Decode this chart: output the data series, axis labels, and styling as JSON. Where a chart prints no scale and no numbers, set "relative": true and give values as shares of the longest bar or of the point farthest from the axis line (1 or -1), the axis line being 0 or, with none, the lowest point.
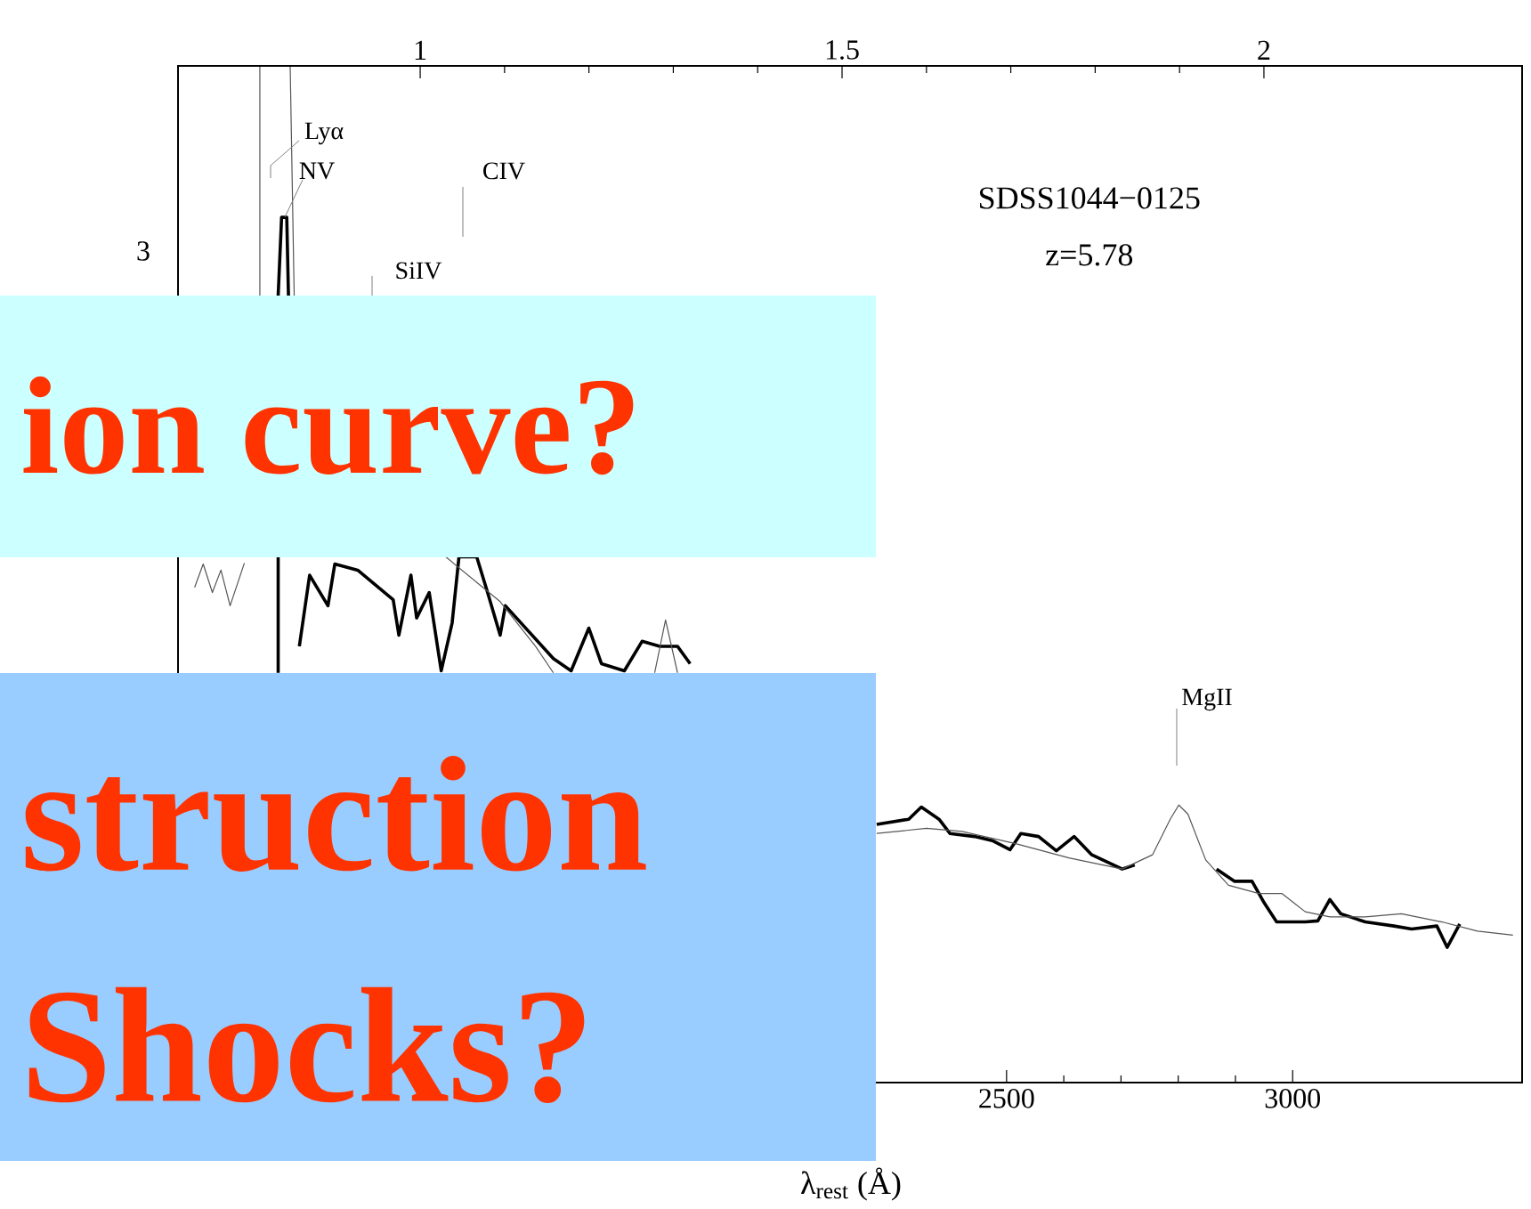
{
  "chart_data": {
    "type": "line",
    "title": "SDSS1044−0125",
    "subtitle": "z=5.78",
    "xlabel": "λ$_{rest}$ (Å)",
    "xlim": [
      1052,
      3401
    ],
    "xticks": [
      2500,
      3000
    ],
    "x2lim": [
      0.713,
      2.306
    ],
    "x2ticks": [
      1,
      1.5,
      2
    ],
    "relative": true,
    "series": [
      {
        "color": "#000000",
        "x": [
          1227,
          1233,
          1242,
          1245,
          null,
          1227,
          1227,
          null,
          1264,
          1282,
          1314,
          1326,
          1366,
          1428,
          1438,
          1459,
          1469,
          1491,
          1512,
          1531,
          1543,
          1574,
          1593,
          1615,
          1624,
          1708,
          1739,
          1770,
          1792,
          1832,
          1863,
          1894,
          1925,
          1947,
          null,
          2273,
          2329,
          2351,
          2382,
          2401,
          2444,
          2475,
          2506,
          2525,
          2556,
          2587,
          2618,
          2649,
          2702,
          2724,
          null,
          2867,
          2898,
          2929,
          2950,
          2972,
          3022,
          3044,
          3065,
          3084,
          3127,
          3177,
          3208,
          3252,
          3270,
          3292
        ],
        "values": [
          0.774,
          0.851,
          0.851,
          0.774,
          null,
          0.517,
          0.403,
          null,
          0.429,
          0.499,
          0.469,
          0.51,
          0.504,
          0.475,
          0.44,
          0.499,
          0.457,
          0.482,
          0.405,
          0.452,
          0.517,
          0.517,
          0.482,
          0.44,
          0.469,
          0.417,
          0.405,
          0.447,
          0.412,
          0.405,
          0.434,
          0.429,
          0.429,
          0.412,
          null,
          0.254,
          0.259,
          0.271,
          0.259,
          0.245,
          0.242,
          0.238,
          0.229,
          0.245,
          0.242,
          0.228,
          0.242,
          0.224,
          0.21,
          0.214,
          null,
          0.21,
          0.198,
          0.198,
          0.177,
          0.158,
          0.158,
          0.159,
          0.18,
          0.166,
          0.158,
          0.154,
          0.151,
          0.154,
          0.133,
          0.156
        ]
      },
      {
        "color": "#555555",
        "x": [
          1081,
          1096,
          1112,
          1127,
          1143,
          1168,
          null,
          1195,
          1195,
          1248,
          1255,
          null,
          1520,
          1615,
          1677,
          1708,
          null,
          1885,
          1904,
          1925,
          null,
          2273,
          2360,
          2422,
          2516,
          2609,
          2702,
          2755,
          2786,
          2801,
          2817,
          2848,
          2888,
          2941,
          2981,
          3022,
          3065,
          3127,
          3190,
          3261,
          3323,
          3385
        ],
        "values": [
          0.487,
          0.51,
          0.482,
          0.504,
          0.469,
          0.511,
          null,
          0.774,
          1.0,
          1.0,
          0.774,
          null,
          0.517,
          0.473,
          0.429,
          0.403,
          null,
          0.403,
          0.455,
          0.403,
          null,
          0.245,
          0.25,
          0.247,
          0.235,
          0.221,
          0.21,
          0.224,
          0.259,
          0.273,
          0.264,
          0.219,
          0.194,
          0.186,
          0.186,
          0.168,
          0.163,
          0.163,
          0.166,
          0.158,
          0.149,
          0.145
        ]
      }
    ],
    "annotations": [
      "3",
      "ion curve?",
      "struction",
      "Shocks?",
      "Lyα",
      "NV",
      "SiIV",
      "CIV",
      "MgII"
    ]
  }
}
